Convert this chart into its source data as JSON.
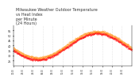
{
  "title": "Milwaukee Weather Outdoor Temperature\nvs Heat Index\nper Minute\n(24 Hours)",
  "title_fontsize": 3.5,
  "xlabel": "",
  "ylabel": "",
  "background_color": "#ffffff",
  "plot_bg_color": "#ffffff",
  "grid_color": "#cccccc",
  "temp_color": "#ff0000",
  "heat_color": "#ff8800",
  "ylim": [
    20,
    60
  ],
  "yticks": [
    25,
    30,
    35,
    40,
    45,
    50,
    55
  ],
  "num_points": 1440,
  "temp_min": 26,
  "temp_max": 52,
  "heat_min": 28,
  "heat_max": 54,
  "peak_hour": 14,
  "valley_hour": 5
}
